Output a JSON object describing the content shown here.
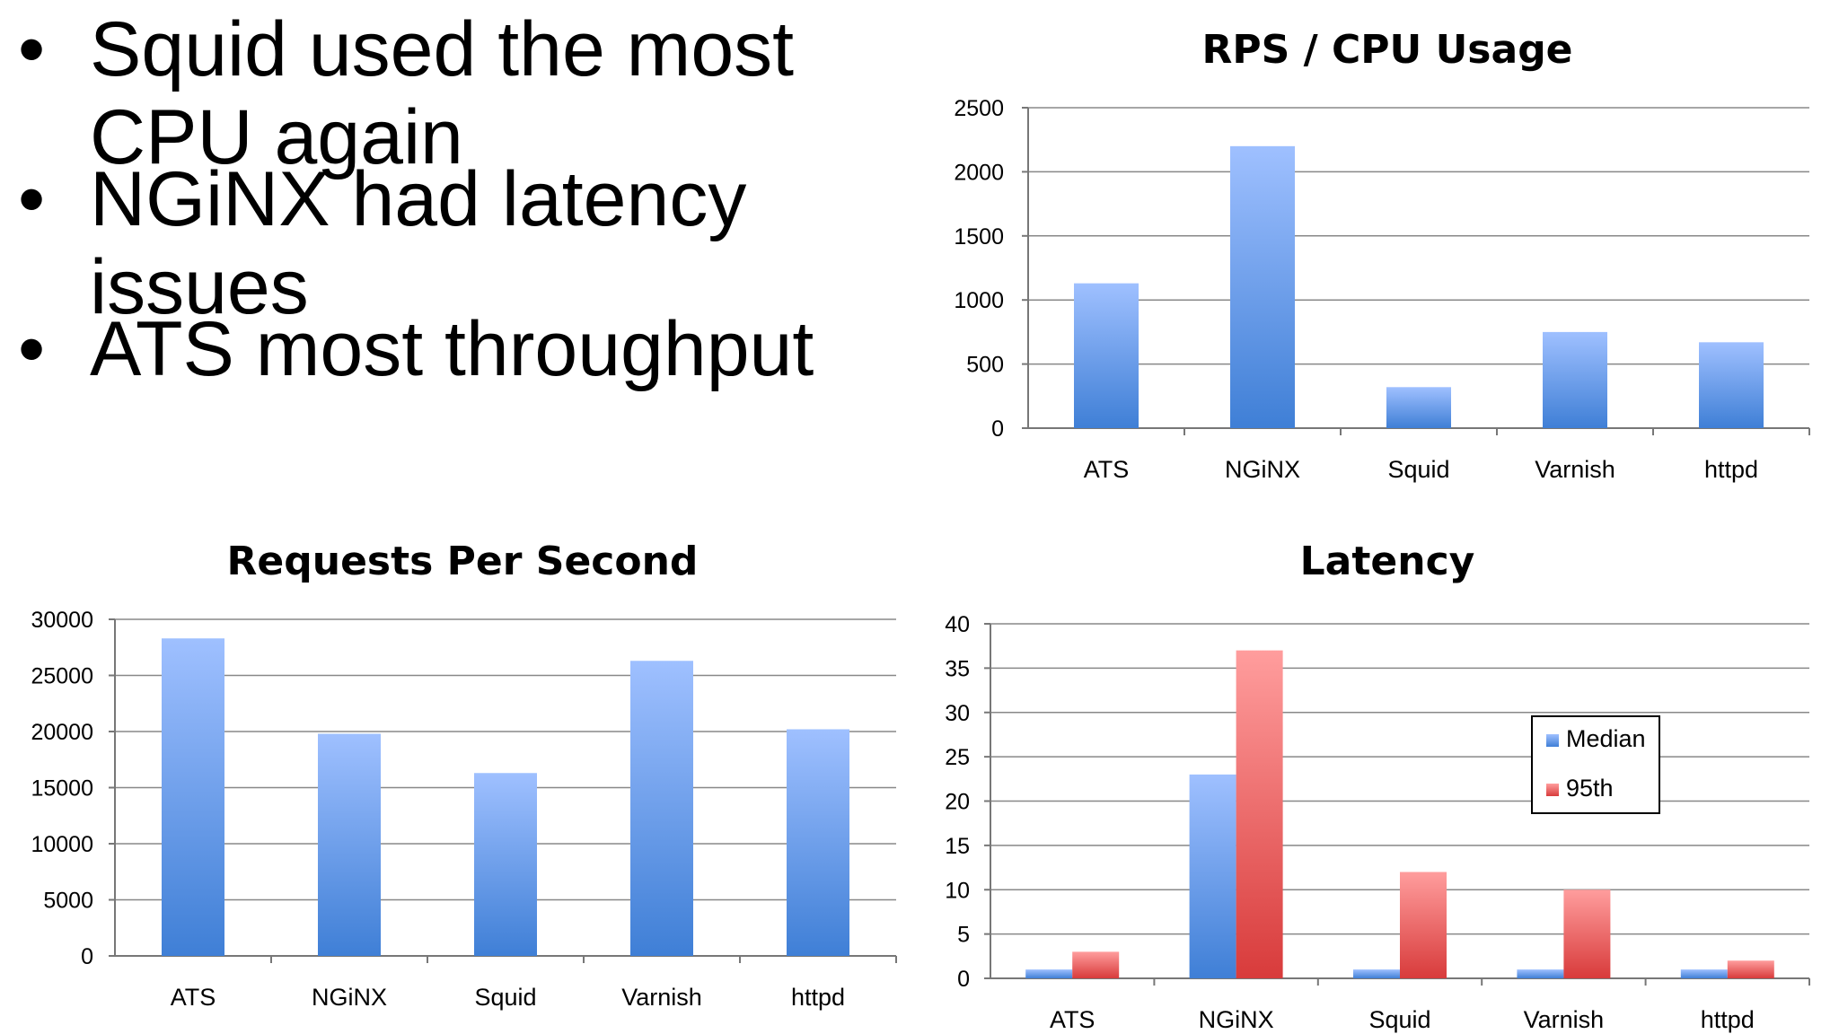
{
  "bullets": [
    {
      "symbol": "•",
      "text": "Squid used the most\nCPU again"
    },
    {
      "symbol": "•",
      "text": "NGiNX had latency\nissues"
    },
    {
      "symbol": "•",
      "text": "ATS most throughput"
    }
  ],
  "colors": {
    "blue_top": "#9fc0ff",
    "blue_bottom": "#3f7fd6",
    "red_top": "#ff9d9d",
    "red_bottom": "#d83b3b"
  },
  "chart_data": [
    {
      "id": "rps_cpu",
      "type": "bar",
      "title": "RPS / CPU Usage",
      "categories": [
        "ATS",
        "NGiNX",
        "Squid",
        "Varnish",
        "httpd"
      ],
      "values": [
        1130,
        2200,
        320,
        750,
        670
      ],
      "ylim": [
        0,
        2500
      ],
      "yticks": [
        "0",
        "500",
        "1000",
        "1500",
        "2000",
        "2500"
      ],
      "grid": true
    },
    {
      "id": "rps",
      "type": "bar",
      "title": "Requests Per Second",
      "categories": [
        "ATS",
        "NGiNX",
        "Squid",
        "Varnish",
        "httpd"
      ],
      "values": [
        28300,
        19800,
        16300,
        26300,
        20200
      ],
      "ylim": [
        0,
        30000
      ],
      "yticks": [
        "0",
        "5000",
        "10000",
        "15000",
        "20000",
        "25000",
        "30000"
      ],
      "grid": true
    },
    {
      "id": "latency",
      "type": "bar",
      "title": "Latency",
      "categories": [
        "ATS",
        "NGiNX",
        "Squid",
        "Varnish",
        "httpd"
      ],
      "series": [
        {
          "name": "Median",
          "values": [
            1,
            23,
            1,
            1,
            1
          ]
        },
        {
          "name": "95th",
          "values": [
            3,
            37,
            12,
            10,
            2
          ]
        }
      ],
      "ylim": [
        0,
        40
      ],
      "yticks": [
        "0",
        "5",
        "10",
        "15",
        "20",
        "25",
        "30",
        "35",
        "40"
      ],
      "grid": true,
      "legend": "right"
    }
  ]
}
